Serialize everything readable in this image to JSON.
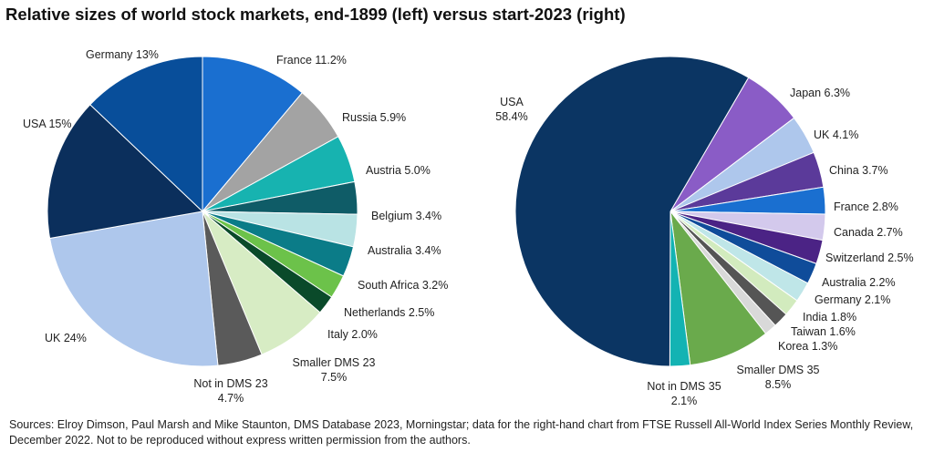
{
  "title": "Relative sizes of world stock markets, end-1899 (left) versus start-2023 (right)",
  "source": "Sources: Elroy Dimson, Paul Marsh and Mike Staunton, DMS Database 2023, Morningstar; data for the right-hand chart from FTSE Russell All-World Index Series Monthly Review, December 2022. Not to be reproduced without express written permission from the authors.",
  "chart_data": [
    {
      "type": "pie",
      "title": "",
      "slices": [
        {
          "label": "France 11.2%",
          "value": 11.2,
          "color": "#1a6fd0"
        },
        {
          "label": "Russia 5.9%",
          "value": 5.9,
          "color": "#a3a3a3"
        },
        {
          "label": "Austria 5.0%",
          "value": 5.0,
          "color": "#17b3b0"
        },
        {
          "label": "Belgium 3.4%",
          "value": 3.4,
          "color": "#0f5c67"
        },
        {
          "label": "Australia 3.4%",
          "value": 3.4,
          "color": "#b9e3e4"
        },
        {
          "label": "South Africa 3.2%",
          "value": 3.2,
          "color": "#0b7c88"
        },
        {
          "label": "Netherlands 2.5%",
          "value": 2.5,
          "color": "#6cc24a"
        },
        {
          "label": "Italy 2.0%",
          "value": 2.0,
          "color": "#0a4a2a"
        },
        {
          "label": "Smaller DMS 23\n7.5%",
          "value": 7.5,
          "color": "#d7ecc4"
        },
        {
          "label": "Not in DMS 23\n4.7%",
          "value": 4.7,
          "color": "#5a5a5a"
        },
        {
          "label": "UK 24%",
          "value": 24,
          "color": "#aec7ec"
        },
        {
          "label": "USA 15%",
          "value": 15,
          "color": "#0b2f5c"
        },
        {
          "label": "Germany 13%",
          "value": 13,
          "color": "#084e9a"
        }
      ]
    },
    {
      "type": "pie",
      "title": "",
      "slices": [
        {
          "label": "Japan 6.3%",
          "value": 6.3,
          "color": "#8a5cc6"
        },
        {
          "label": "UK 4.1%",
          "value": 4.1,
          "color": "#aec7ec"
        },
        {
          "label": "China 3.7%",
          "value": 3.7,
          "color": "#5b3a9a"
        },
        {
          "label": "France 2.8%",
          "value": 2.8,
          "color": "#1a6fd0"
        },
        {
          "label": "Canada 2.7%",
          "value": 2.7,
          "color": "#d3c9ec"
        },
        {
          "label": "Switzerland 2.5%",
          "value": 2.5,
          "color": "#4b2385"
        },
        {
          "label": "Australia 2.2%",
          "value": 2.2,
          "color": "#0f4c9a"
        },
        {
          "label": "Germany 2.1%",
          "value": 2.1,
          "color": "#bfe6e8"
        },
        {
          "label": "India 1.8%",
          "value": 1.8,
          "color": "#d2ebbe"
        },
        {
          "label": "Taiwan 1.6%",
          "value": 1.6,
          "color": "#555555"
        },
        {
          "label": "Korea 1.3%",
          "value": 1.3,
          "color": "#d9d9d9"
        },
        {
          "label": "Smaller DMS 35\n8.5%",
          "value": 8.5,
          "color": "#6aaa4c"
        },
        {
          "label": "Not in DMS 35\n2.1%",
          "value": 2.1,
          "color": "#13b3b3"
        },
        {
          "label": "USA\n58.4%",
          "value": 58.4,
          "color": "#0b3563"
        }
      ]
    }
  ]
}
